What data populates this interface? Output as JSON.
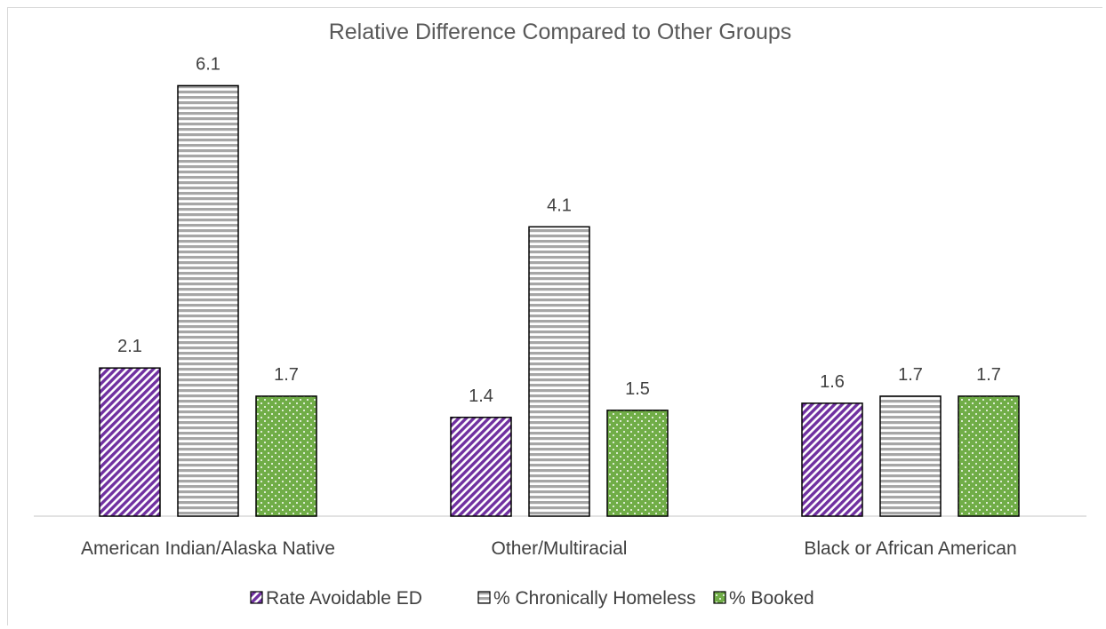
{
  "chart_data": {
    "type": "bar",
    "title": "Relative Difference Compared to Other Groups",
    "xlabel": "",
    "ylabel": "",
    "ylim": [
      0,
      7
    ],
    "grid": false,
    "legend_position": "bottom",
    "categories": [
      "American Indian/Alaska Native",
      "Other/Multiracial",
      "Black or African American"
    ],
    "series": [
      {
        "name": "Rate Avoidable ED",
        "values": [
          2.1,
          1.4,
          1.6
        ],
        "labels": [
          "2.1",
          "1.4",
          "1.6"
        ],
        "color": "#7030a0",
        "pattern": "diagonal-stripes"
      },
      {
        "name": "% Chronically Homeless",
        "values": [
          6.1,
          4.1,
          1.7
        ],
        "labels": [
          "6.1",
          "4.1",
          "1.7"
        ],
        "color": "#a6a6a6",
        "pattern": "horizontal-stripes"
      },
      {
        "name": "% Booked",
        "values": [
          1.7,
          1.5,
          1.7
        ],
        "labels": [
          "1.7",
          "1.5",
          "1.7"
        ],
        "color": "#70ad47",
        "pattern": "dots"
      }
    ]
  }
}
